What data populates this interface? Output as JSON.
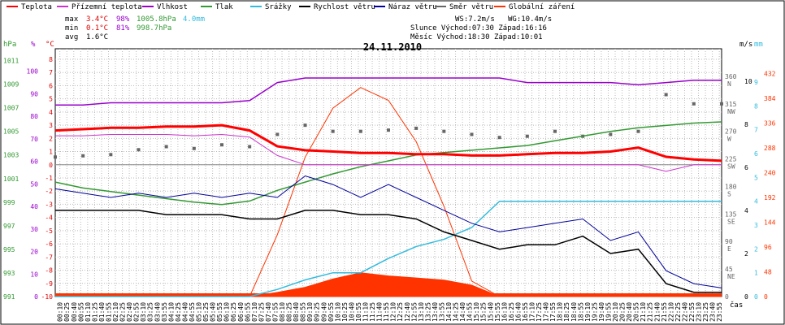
{
  "chart_data": {
    "type": "line",
    "title": "24.11.2010",
    "legend": [
      {
        "name": "Teplota",
        "color": "#ff0000"
      },
      {
        "name": "Přízemní teplota",
        "color": "#cc33cc"
      },
      {
        "name": "Vlhkost",
        "color": "#9900cc"
      },
      {
        "name": "Tlak",
        "color": "#339933"
      },
      {
        "name": "Srážky",
        "color": "#33bbdd"
      },
      {
        "name": "Rychlost větru",
        "color": "#000000"
      },
      {
        "name": "Náraz větru",
        "color": "#000099"
      },
      {
        "name": "Směr větru",
        "color": "#666666"
      },
      {
        "name": "Globální záření",
        "color": "#ff3300"
      }
    ],
    "stats": {
      "max": {
        "label": "max",
        "temp": "3.4°C",
        "hum": "98%",
        "press": "1005.8hPa",
        "rain": "4.0mm"
      },
      "min": {
        "label": "min",
        "temp": "0.1°C",
        "hum": "81%",
        "press": "998.7hPa"
      },
      "avg": {
        "label": "avg",
        "temp": "1.6°C"
      }
    },
    "info": {
      "ws": "WS:7.2m/s",
      "wg": "WG:10.4m/s",
      "sun": "Slunce Východ:07:30  Západ:16:16",
      "moon": "Měsíc  Východ:18:30  Západ:10:01"
    },
    "axes": {
      "hpa": {
        "unit": "hPa",
        "ticks": [
          "1011",
          "1009",
          "1007",
          "1005",
          "1003",
          "1001",
          "999",
          "997",
          "995",
          "993",
          "991"
        ]
      },
      "pct": {
        "unit": "%",
        "ticks": [
          "100",
          "90",
          "80",
          "70",
          "60",
          "50",
          "40",
          "30",
          "20",
          "10",
          "0"
        ]
      },
      "temp": {
        "unit": "°C",
        "ticks": [
          "8",
          "7",
          "6",
          "5",
          "4",
          "3",
          "2",
          "1",
          "0",
          "-1",
          "-2",
          "-3",
          "-4",
          "-5",
          "-6",
          "-7",
          "-8",
          "-9",
          "-10"
        ]
      },
      "dir": {
        "unit": "m/s",
        "ticks": [
          "360",
          "315",
          "270",
          "225",
          "180",
          "135",
          "90",
          "45",
          "0"
        ],
        "labels": [
          "N",
          "NW",
          "W",
          "SW",
          "S",
          "SE",
          "E",
          "NE",
          ""
        ]
      },
      "ms": {
        "unit": "m/s",
        "ticks": [
          "10",
          "8",
          "6",
          "4",
          "2",
          "0"
        ]
      },
      "mm": {
        "unit": "mm",
        "ticks": [
          "9",
          "8",
          "7",
          "6",
          "5",
          "4",
          "3",
          "2",
          "1",
          "0"
        ]
      },
      "wm2": {
        "ticks": [
          "432",
          "384",
          "336",
          "288",
          "240",
          "192",
          "144",
          "96",
          "48",
          "0"
        ]
      },
      "x": {
        "label": "čas",
        "ticks": [
          "00:10",
          "00:25",
          "00:40",
          "00:55",
          "01:10",
          "01:25",
          "01:40",
          "01:55",
          "02:10",
          "02:25",
          "02:40",
          "02:55",
          "03:10",
          "03:25",
          "03:40",
          "03:55",
          "04:10",
          "04:25",
          "04:40",
          "04:55",
          "05:10",
          "05:25",
          "05:40",
          "05:55",
          "06:10",
          "06:25",
          "06:40",
          "06:55",
          "07:10",
          "07:25",
          "07:40",
          "07:55",
          "08:10",
          "08:25",
          "08:40",
          "08:55",
          "09:10",
          "09:25",
          "09:40",
          "09:55",
          "10:10",
          "10:25",
          "10:40",
          "10:55",
          "11:10",
          "11:25",
          "11:40",
          "11:55",
          "12:10",
          "12:25",
          "12:40",
          "12:55",
          "13:10",
          "13:25",
          "13:40",
          "13:55",
          "14:10",
          "14:25",
          "14:40",
          "14:55",
          "15:10",
          "15:25",
          "15:40",
          "15:55",
          "16:10",
          "16:25",
          "16:40",
          "16:55",
          "17:10",
          "17:25",
          "17:40",
          "17:55",
          "18:10",
          "18:25",
          "18:40",
          "18:55",
          "19:10",
          "19:25",
          "19:40",
          "19:55",
          "20:10",
          "20:25",
          "20:40",
          "20:55",
          "21:10",
          "21:25",
          "21:40",
          "21:55",
          "22:10",
          "22:25",
          "22:40",
          "22:55",
          "23:10",
          "23:25",
          "23:40",
          "23:55"
        ]
      }
    },
    "hours": [
      0,
      1,
      2,
      3,
      4,
      5,
      6,
      7,
      8,
      9,
      10,
      11,
      12,
      13,
      14,
      15,
      16,
      17,
      18,
      19,
      20,
      21,
      22,
      23,
      24
    ],
    "temperature": [
      2.6,
      2.7,
      2.8,
      2.8,
      2.9,
      2.9,
      3.0,
      2.6,
      1.4,
      1.1,
      1.0,
      0.9,
      0.9,
      0.8,
      0.8,
      0.7,
      0.7,
      0.8,
      0.9,
      0.9,
      1.0,
      1.3,
      0.6,
      0.4,
      0.3
    ],
    "ground_temperature": [
      2.2,
      2.2,
      2.3,
      2.3,
      2.3,
      2.2,
      2.3,
      2.1,
      0.7,
      0.0,
      0.0,
      0.0,
      0.0,
      0.0,
      0.0,
      0.0,
      0.0,
      0.0,
      0.0,
      0.0,
      0.0,
      0.0,
      -0.5,
      0.0,
      0.0
    ],
    "humidity": [
      85,
      85,
      86,
      86,
      86,
      86,
      86,
      87,
      95,
      97,
      97,
      97,
      97,
      97,
      97,
      97,
      97,
      95,
      95,
      95,
      95,
      94,
      95,
      96,
      96
    ],
    "pressure": [
      1000.7,
      1000.2,
      999.9,
      999.6,
      999.3,
      999.0,
      998.8,
      999.1,
      1000.0,
      1000.7,
      1001.4,
      1002.0,
      1002.5,
      1003.0,
      1003.2,
      1003.4,
      1003.6,
      1003.8,
      1004.2,
      1004.6,
      1005.0,
      1005.3,
      1005.5,
      1005.7,
      1005.8
    ],
    "rain": [
      0,
      0,
      0,
      0,
      0,
      0,
      0,
      0,
      0.3,
      0.7,
      1.0,
      1.0,
      1.6,
      2.1,
      2.4,
      2.9,
      4.0,
      4.0,
      4.0,
      4.0,
      4.0,
      4.0,
      4.0,
      4.0,
      4.0
    ],
    "wind_speed": [
      4.0,
      4.0,
      4.0,
      4.0,
      3.8,
      3.8,
      3.8,
      3.6,
      3.6,
      4.0,
      4.0,
      3.8,
      3.8,
      3.6,
      3.0,
      2.6,
      2.2,
      2.4,
      2.4,
      2.8,
      2.0,
      2.2,
      0.6,
      0.2,
      0.2
    ],
    "wind_gust": [
      5.0,
      4.8,
      4.6,
      4.8,
      4.6,
      4.8,
      4.6,
      4.8,
      4.6,
      5.6,
      5.2,
      4.6,
      5.2,
      4.6,
      4.0,
      3.4,
      3.0,
      3.2,
      3.4,
      3.6,
      2.6,
      3.0,
      1.2,
      0.6,
      0.4
    ],
    "wind_direction": [
      228,
      230,
      232,
      240,
      245,
      242,
      248,
      245,
      265,
      280,
      270,
      270,
      272,
      275,
      270,
      265,
      260,
      262,
      270,
      262,
      265,
      270,
      330,
      315,
      315
    ],
    "radiation": [
      0,
      0,
      0,
      0,
      0,
      0,
      0,
      0,
      8,
      18,
      34,
      46,
      40,
      36,
      32,
      22,
      0,
      0,
      0,
      0,
      0,
      0,
      0,
      0,
      0
    ],
    "radiation_clear_sky": [
      0,
      0,
      0,
      0,
      0,
      0,
      0,
      0,
      120,
      270,
      365,
      405,
      380,
      300,
      175,
      30,
      0,
      0,
      0,
      0,
      0,
      0,
      0,
      0,
      0
    ],
    "grid": true,
    "legend_placement": "top"
  }
}
